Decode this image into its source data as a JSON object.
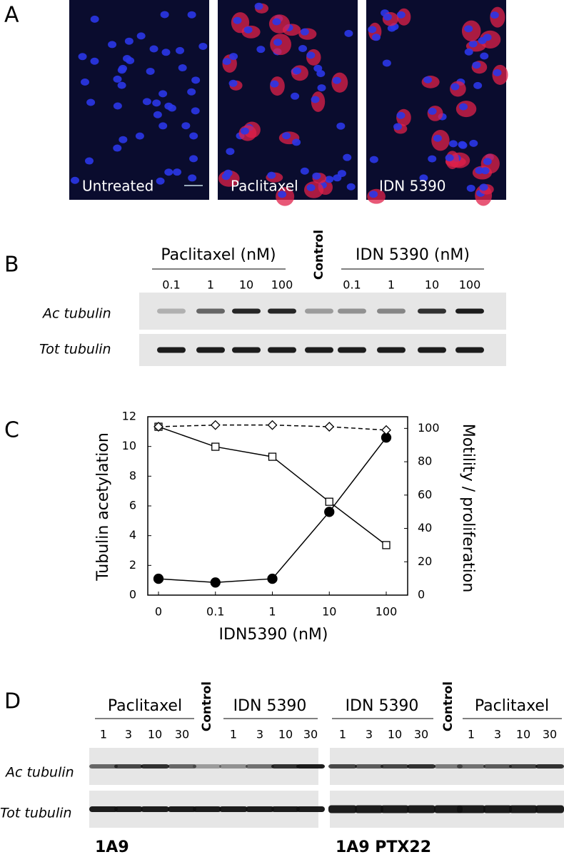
{
  "panel_a": {
    "label": "A",
    "images": [
      "Untreated",
      "Paclitaxel",
      "IDN 5390"
    ]
  },
  "panel_b": {
    "label": "B",
    "left_group": "Paclitaxel  (nM)",
    "left_doses": [
      "0.1",
      "1",
      "10",
      "100"
    ],
    "control": "Control",
    "right_group": "IDN 5390 (nM)",
    "right_doses": [
      "0.1",
      "1",
      "10",
      "100"
    ],
    "row_labels": [
      "Ac tubulin",
      "Tot tubulin"
    ]
  },
  "chart_data": {
    "type": "line",
    "panel_label": "C",
    "x_label": "IDN5390 (nM)",
    "y_label": "Tubulin acetylation",
    "y2_label": "Motility / proliferation",
    "categories": [
      "0",
      "0.1",
      "1",
      "10",
      "100"
    ],
    "ylim": [
      0,
      12
    ],
    "yticks": [
      0,
      2,
      4,
      6,
      8,
      10,
      12
    ],
    "y2lim": [
      0,
      107
    ],
    "y2ticks": [
      0,
      20,
      40,
      60,
      80,
      100
    ],
    "series": [
      {
        "color": "#000000",
        "marker": "circle",
        "filled": true,
        "dashed": false,
        "axis": "y",
        "values": [
          1.1,
          0.85,
          1.1,
          5.6,
          10.6
        ]
      },
      {
        "color": "#000000",
        "marker": "square",
        "filled": false,
        "dashed": false,
        "axis": "y2",
        "values": [
          101,
          89,
          83,
          56,
          30
        ]
      },
      {
        "color": "#000000",
        "marker": "diamond",
        "filled": false,
        "dashed": true,
        "axis": "y2",
        "values": [
          101,
          102,
          102,
          101,
          99
        ]
      }
    ]
  },
  "panel_d": {
    "label": "D",
    "row_labels": [
      "Ac tubulin",
      "Tot tubulin"
    ],
    "blots": [
      {
        "cell_line": "1A9",
        "left_group": "Paclitaxel",
        "left_doses": [
          "1",
          "3",
          "10",
          "30"
        ],
        "control": "Control",
        "right_group": "IDN 5390",
        "right_doses": [
          "1",
          "3",
          "10",
          "30"
        ]
      },
      {
        "cell_line": "1A9 PTX22",
        "left_group": "IDN 5390",
        "left_doses": [
          "1",
          "3",
          "10",
          "30"
        ],
        "control": "Control",
        "right_group": "Paclitaxel",
        "right_doses": [
          "1",
          "3",
          "10",
          "30"
        ]
      }
    ]
  }
}
